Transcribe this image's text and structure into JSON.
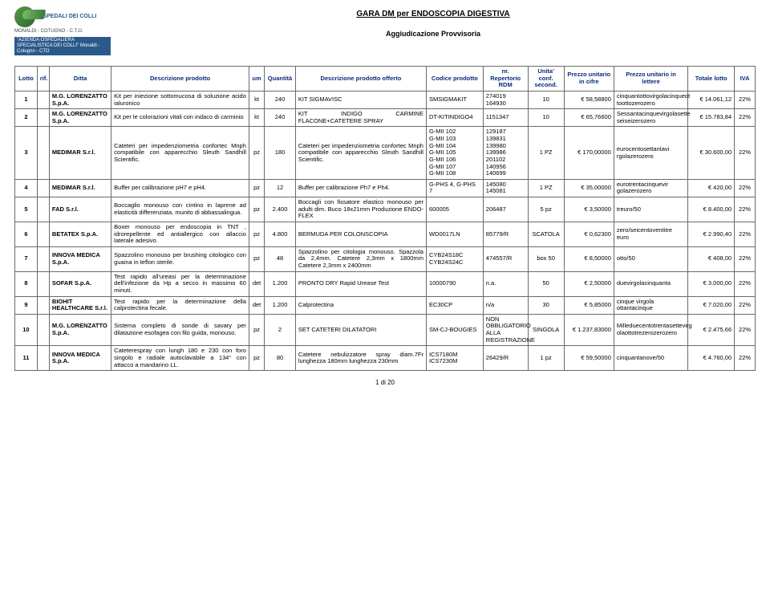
{
  "header": {
    "title1": "GARA DM per ENDOSCOPIA DIGESTIVA",
    "title2": "Aggiudicazione Provvisoria",
    "logo_text": "OSPEDALI DEI COLLI",
    "logo_sub": "MONALDI - COTUGNO - C.T.O.",
    "logo_band": "\"AZIENDA OSPEDALIERA SPECIALISTICA DEI COLLI\" Monaldi - Cotugno - CTO"
  },
  "columns": [
    "Lotto",
    "rif.",
    "Ditta",
    "Descrizione prodotto",
    "um",
    "Quantità",
    "Descrizione prodotto offerto",
    "Codice prodotto",
    "nr. Repertorio RDM",
    "Unita' conf. second.",
    "Prezzo unitario in cifre",
    "Prezzo unitario in lettere",
    "Totale lotto",
    "IVA"
  ],
  "rows": [
    {
      "lotto": "1",
      "rif": "",
      "ditta": "M.G. LORENZATTO S.p.A.",
      "desc": "Kit per iniezione sottomucosa di soluzione acido ialuronico",
      "um": "kt",
      "qta": "240",
      "descoff": "KIT SIGMAVISC",
      "cod": "SMSIGMAKIT",
      "rep": "274019 164930",
      "unita": "10",
      "pcifre": "€ 58,58800",
      "plett": "cinquantottovirgolacinqueot toottozerozero",
      "tot": "€ 14.061,12",
      "iva": "22%"
    },
    {
      "lotto": "2",
      "rif": "",
      "ditta": "M.G. LORENZATTO S.p.A.",
      "desc": "Kit per le colorazioni vitali con indaco di carminio",
      "um": "kt",
      "qta": "240",
      "descoff": "KIT INDIGO CARMINE FLACONE+CATETERE SPRAY",
      "cod": "DT-KITINDIGO4",
      "rep": "1151347",
      "unita": "10",
      "pcifre": "€ 65,76600",
      "plett": "Sessantacinquevirgolasette seiseizerozero",
      "tot": "€ 15.783,84",
      "iva": "22%"
    },
    {
      "lotto": "3",
      "rif": "",
      "ditta": "MEDIMAR S.r.l.",
      "desc": "Cateteri per impedenziometria confortec Mnph compatibile con apparecchio Sleuth Sandhill Scientific.",
      "um": "pz",
      "qta": "180",
      "descoff": "Cateteri per impedenziometria confortec Mnph compatibile con apparecchio Sleuth Sandhill Scientific.",
      "cod": "G-MII 102\nG-MII 103\nG-MII 104\nG-MII 105\nG-MII 106\nG-MII 107\nG-MII 108",
      "rep": "129187\n139831\n139980\n139986\n201102\n140956\n140699",
      "unita": "1 PZ",
      "pcifre": "€ 170,00000",
      "plett": "eurocentosettantavi rgolazerozero",
      "tot": "€ 30.600,00",
      "iva": "22%"
    },
    {
      "lotto": "4",
      "rif": "",
      "ditta": "MEDIMAR S.r.l.",
      "desc": "Buffer per calibrazione pH7 e pH4.",
      "um": "pz",
      "qta": "12",
      "descoff": "Buffer per calibrazione Ph7 e Ph4.",
      "cod": "G-PHS 4, G-PHS 7",
      "rep": "145080 145081",
      "unita": "1 PZ",
      "pcifre": "€ 35,00000",
      "plett": "eurotrentacinquevir golazerozero",
      "tot": "€ 420,00",
      "iva": "22%"
    },
    {
      "lotto": "5",
      "rif": "",
      "ditta": "FAD S.r.l.",
      "desc": "Boccaglio monouso con cintino in laprene ad elasticità differenziata, munito di abbassalingua.",
      "um": "pz",
      "qta": "2.400",
      "descoff": "Boccagli con fissatore elastico monouso per adulti dim. Buco 18x21mm Produzione ENDO-FLEX",
      "cod": "600005",
      "rep": "206487",
      "unita": "5 pz",
      "pcifre": "€ 3,50000",
      "plett": "treuro/50",
      "tot": "€ 8.400,00",
      "iva": "22%"
    },
    {
      "lotto": "6",
      "rif": "",
      "ditta": "BETATEX S.p.A.",
      "desc": "Boxer monouso per endoscopia in TNT , idrorepellente ed antiallergico con allaccio laterale adesivo.",
      "um": "pz",
      "qta": "4.800",
      "descoff": "BERMUDA PER COLONSCOPIA",
      "cod": "WD0017LN",
      "rep": "85779/R",
      "unita": "SCATOLA",
      "pcifre": "€ 0,62300",
      "plett": "zero/seicentoventitre euro",
      "tot": "€ 2.990,40",
      "iva": "22%"
    },
    {
      "lotto": "7",
      "rif": "",
      "ditta": "INNOVA MEDICA S.p.A.",
      "desc": "Spazzolino monouso per brushing citologico con guaina in teflon sterile.",
      "um": "pz",
      "qta": "48",
      "descoff": "Spazzolino per citologia monouso. Spazzola da 2,4mm. Catetere 2,3mm x 1800mm Catetere 2,3mm x 2400mm",
      "cod": "CYB24S18C CYB24S24C",
      "rep": "474557/R",
      "unita": "box 50",
      "pcifre": "€ 8,50000",
      "plett": "otto/50",
      "tot": "€ 408,00",
      "iva": "22%"
    },
    {
      "lotto": "8",
      "rif": "",
      "ditta": "SOFAR S.p.A.",
      "desc": "Test rapido all'ureasi per la determinazione dell'infezione da Hp a secco in massimo 60 minuti.",
      "um": "det",
      "qta": "1.200",
      "descoff": "PRONTO DRY Rapid Urease Test",
      "cod": "10000790",
      "rep": "n.a.",
      "unita": "50",
      "pcifre": "€ 2,50000",
      "plett": "duevirgolacinquanta",
      "tot": "€ 3.000,00",
      "iva": "22%"
    },
    {
      "lotto": "9",
      "rif": "",
      "ditta": "BIOHIT HEALTHCARE S.r.l.",
      "desc": "Test rapido per la determinazione della calprotectina fecale.",
      "um": "det",
      "qta": "1.200",
      "descoff": "Calprotectina",
      "cod": "EC30CP",
      "rep": "n/a",
      "unita": "30",
      "pcifre": "€ 5,85000",
      "plett": "cinque virgola ottantacinque",
      "tot": "€ 7.020,00",
      "iva": "22%"
    },
    {
      "lotto": "10",
      "rif": "",
      "ditta": "M.G. LORENZATTO S.p.A.",
      "desc": "Sistema completo di sonde di savary per dilatazione esofagea con filo guida, monouso.",
      "um": "pz",
      "qta": "2",
      "descoff": "SET CATETERI DILATATORI",
      "cod": "SM-CJ-BOUGIES",
      "rep": "NON OBBLIGATORIO ALLA REGISTRAZIONE",
      "unita": "SINGOLA",
      "pcifre": "€ 1.237,83000",
      "plett": "Milleduecentotrentasettevirg olaottotrezerozerozero",
      "tot": "€ 2.475,66",
      "iva": "22%"
    },
    {
      "lotto": "11",
      "rif": "",
      "ditta": "INNOVA MEDICA S.p.A.",
      "desc": "Cateterespray con lungh 180 e 230 con foro singolo e radiale autoclavabile a 134° con attacco a mandarino LL.",
      "um": "pz",
      "qta": "80",
      "descoff": "Catetere nebulizzatore spray diam.7Fr lunghezza 180mm lunghezza 230mm",
      "cod": "ICS7180M ICS7230M",
      "rep": "26429/R",
      "unita": "1 pz",
      "pcifre": "€ 59,50000",
      "plett": "cinquantanove/50",
      "tot": "€ 4.760,00",
      "iva": "22%"
    }
  ],
  "footer": "1 di 20",
  "colors": {
    "header_text": "#0a2a7a",
    "border": "#6a6a6a"
  }
}
